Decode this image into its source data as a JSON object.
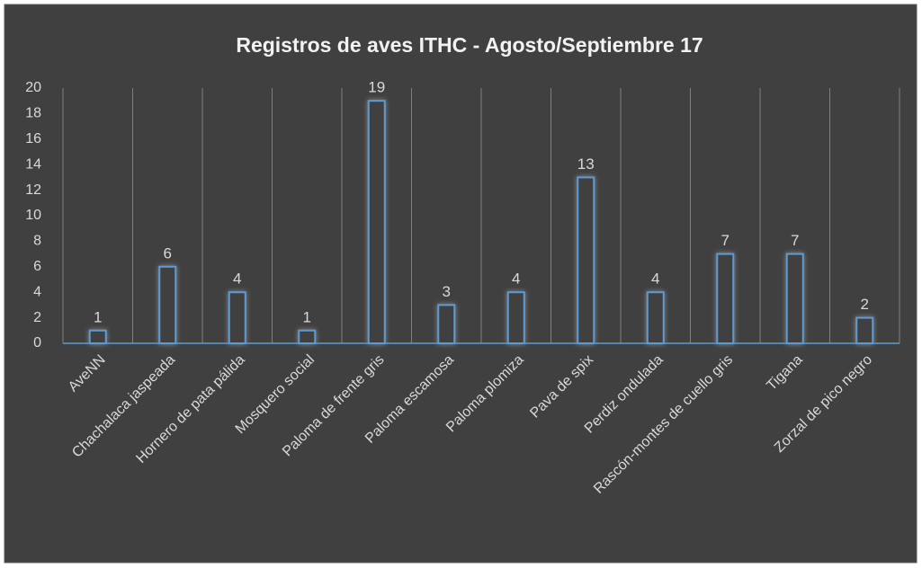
{
  "chart_data": {
    "type": "bar",
    "title": "Registros de aves ITHC - Agosto/Septiembre 17",
    "categories": [
      "AveNN",
      "Chachalaca jaspeada",
      "Hornero de pata pálida",
      "Mosquero social",
      "Paloma de frente gris",
      "Paloma escamosa",
      "Paloma plomiza",
      "Pava de spix",
      "Perdiz ondulada",
      "Rascón-montes de cuello gris",
      "Tigana",
      "Zorzal de pico negro"
    ],
    "values": [
      1,
      6,
      4,
      1,
      19,
      3,
      4,
      13,
      4,
      7,
      7,
      2
    ],
    "color": "#5b9bd5",
    "ylim": [
      0,
      20
    ],
    "yticks": [
      0,
      2,
      4,
      6,
      8,
      10,
      12,
      14,
      16,
      18,
      20
    ],
    "grid": true
  }
}
